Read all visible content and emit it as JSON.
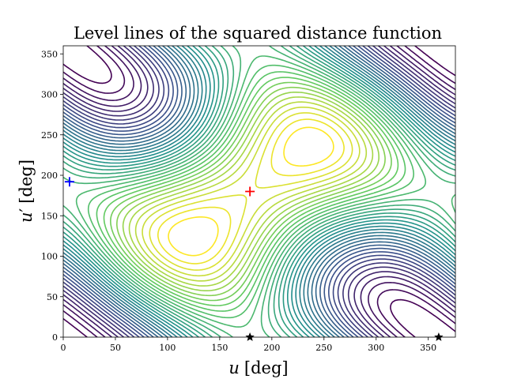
{
  "chart_data": {
    "type": "contour",
    "title": "Level lines of the squared distance function",
    "xlabel": {
      "symbol": "u",
      "prime": "",
      "unit": "[deg]"
    },
    "ylabel": {
      "symbol": "u",
      "prime": "′",
      "unit": "[deg]"
    },
    "xlim": [
      0,
      376
    ],
    "ylim": [
      0,
      360
    ],
    "xticks": [
      0,
      50,
      100,
      150,
      200,
      250,
      300,
      350
    ],
    "yticks": [
      0,
      50,
      100,
      150,
      200,
      250,
      300,
      350
    ],
    "colormap": "viridis",
    "levels": 38,
    "center": [
      180,
      180
    ],
    "markers": [
      {
        "x": 6,
        "y": 192,
        "symbol": "plus",
        "color": "#0000ff"
      },
      {
        "x": 179,
        "y": 180,
        "symbol": "plus",
        "color": "#ff0000"
      },
      {
        "x": 179,
        "y": 0,
        "symbol": "star",
        "color": "#000000"
      },
      {
        "x": 360,
        "y": 0,
        "symbol": "star",
        "color": "#000000"
      }
    ]
  }
}
